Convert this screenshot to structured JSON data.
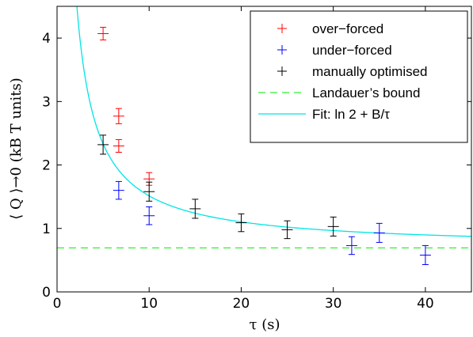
{
  "chart_data": {
    "type": "scatter",
    "xlabel": "τ (s)",
    "ylabel": "⟨ Q ⟩→0 (kB T units)",
    "xlim": [
      0,
      45
    ],
    "ylim": [
      0,
      4.5
    ],
    "x_ticks": [
      0,
      10,
      20,
      30,
      40
    ],
    "y_ticks": [
      0,
      1,
      2,
      3,
      4
    ],
    "x_tick_labels": [
      "0",
      "10",
      "20",
      "30",
      "40"
    ],
    "y_tick_labels": [
      "0",
      "1",
      "2",
      "3",
      "4"
    ],
    "grid": false,
    "legend_position": "top-right",
    "series": [
      {
        "name": "over−forced",
        "kind": "errorbar",
        "color": "#ff0000",
        "points": [
          {
            "x": 5.0,
            "y": 4.07,
            "err": 0.1
          },
          {
            "x": 6.7,
            "y": 2.77,
            "err": 0.12
          },
          {
            "x": 6.7,
            "y": 2.3,
            "err": 0.1
          },
          {
            "x": 10.0,
            "y": 1.78,
            "err": 0.1
          }
        ]
      },
      {
        "name": "under−forced",
        "kind": "errorbar",
        "color": "#0000ff",
        "points": [
          {
            "x": 6.7,
            "y": 1.6,
            "err": 0.14
          },
          {
            "x": 10.0,
            "y": 1.2,
            "err": 0.14
          },
          {
            "x": 32.0,
            "y": 0.73,
            "err": 0.14
          },
          {
            "x": 35.0,
            "y": 0.93,
            "err": 0.15
          },
          {
            "x": 40.0,
            "y": 0.58,
            "err": 0.15
          }
        ]
      },
      {
        "name": "manually optimised",
        "kind": "errorbar",
        "color": "#000000",
        "points": [
          {
            "x": 5.0,
            "y": 2.32,
            "err": 0.15
          },
          {
            "x": 10.0,
            "y": 1.58,
            "err": 0.15
          },
          {
            "x": 15.0,
            "y": 1.31,
            "err": 0.15
          },
          {
            "x": 20.0,
            "y": 1.09,
            "err": 0.14
          },
          {
            "x": 25.0,
            "y": 0.98,
            "err": 0.14
          },
          {
            "x": 30.0,
            "y": 1.03,
            "err": 0.15
          }
        ]
      },
      {
        "name": "Landauer’s bound",
        "kind": "hline",
        "color": "#33ee33",
        "y": 0.6931
      },
      {
        "name": "Fit: ln 2 + B/τ",
        "kind": "curve",
        "color": "#00e5e5",
        "a": 0.6931,
        "B": 8.2
      }
    ]
  }
}
